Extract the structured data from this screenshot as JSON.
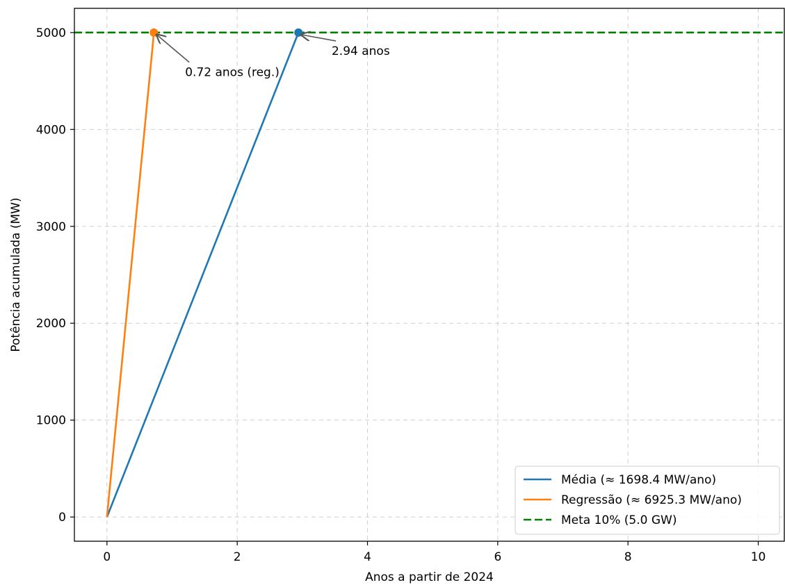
{
  "chart_data": {
    "type": "line",
    "xlabel": "Anos a partir de 2024",
    "ylabel": "Potência acumulada (MW)",
    "xlim": [
      -0.5,
      10.4
    ],
    "ylim": [
      -250,
      5250
    ],
    "xticks": [
      0,
      2,
      4,
      6,
      8,
      10
    ],
    "xtick_labels": [
      "0",
      "2",
      "4",
      "6",
      "8",
      "10"
    ],
    "yticks": [
      0,
      1000,
      2000,
      3000,
      4000,
      5000
    ],
    "ytick_labels": [
      "0",
      "1000",
      "2000",
      "3000",
      "4000",
      "5000"
    ],
    "grid": true,
    "legend_position": "lower-right",
    "series": [
      {
        "name": "Média (≈ 1698.4 MW/ano)",
        "color": "#1f77b4",
        "style": "solid",
        "x": [
          0,
          2.94
        ],
        "y": [
          0,
          5000
        ]
      },
      {
        "name": "Regressão (≈ 6925.3 MW/ano)",
        "color": "#ff7f0e",
        "style": "solid",
        "x": [
          0,
          0.7,
          0.72
        ],
        "y": [
          0,
          4850,
          5000
        ]
      },
      {
        "name": "Meta 10% (5.0 GW)",
        "color": "#008000",
        "style": "dashed",
        "x": [
          -0.5,
          10.4
        ],
        "y": [
          5000,
          5000
        ]
      }
    ],
    "markers": [
      {
        "x": 0.72,
        "y": 5000,
        "color": "#ff7f0e"
      },
      {
        "x": 2.94,
        "y": 5000,
        "color": "#1f77b4"
      }
    ],
    "annotations": [
      {
        "text": "0.72 anos (reg.)",
        "x": 0.72,
        "y": 5000,
        "text_x": 1.2,
        "text_y": 4550
      },
      {
        "text": "2.94 anos",
        "x": 2.94,
        "y": 5000,
        "text_x": 3.45,
        "text_y": 4770
      }
    ]
  }
}
